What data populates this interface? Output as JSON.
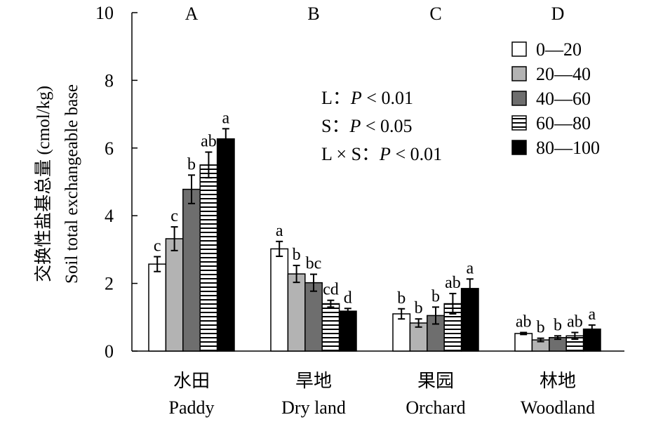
{
  "chart_data": {
    "type": "bar",
    "ylabel_cn": "交换性盐基总量 (cmol/kg)",
    "ylabel_en": "Soil total exchangeable base",
    "ylim": [
      0,
      10
    ],
    "yticks": [
      "0",
      "2",
      "4",
      "6",
      "8",
      "10"
    ],
    "panel_letters": [
      "A",
      "B",
      "C",
      "D"
    ],
    "categories": [
      {
        "cn": "水田",
        "en": "Paddy"
      },
      {
        "cn": "旱地",
        "en": "Dry land"
      },
      {
        "cn": "果园",
        "en": "Orchard"
      },
      {
        "cn": "林地",
        "en": "Woodland"
      }
    ],
    "series": [
      {
        "name": "0—20",
        "fill": "white",
        "values": [
          2.57,
          3.02,
          1.1,
          0.52
        ],
        "errors": [
          0.22,
          0.22,
          0.15,
          0.03
        ],
        "letters": [
          "c",
          "a",
          "b",
          "ab"
        ]
      },
      {
        "name": "20—40",
        "fill": "lightgray",
        "values": [
          3.32,
          2.28,
          0.83,
          0.33
        ],
        "errors": [
          0.35,
          0.25,
          0.12,
          0.05
        ],
        "letters": [
          "c",
          "b",
          "b",
          "b"
        ]
      },
      {
        "name": "40—60",
        "fill": "darkgray",
        "values": [
          4.78,
          2.02,
          1.05,
          0.4
        ],
        "errors": [
          0.42,
          0.25,
          0.25,
          0.05
        ],
        "letters": [
          "b",
          "bc",
          "b",
          "b"
        ]
      },
      {
        "name": "60—80",
        "fill": "stripes",
        "values": [
          5.5,
          1.4,
          1.4,
          0.45
        ],
        "errors": [
          0.38,
          0.1,
          0.3,
          0.1
        ],
        "letters": [
          "ab",
          "cd",
          "ab",
          "ab"
        ]
      },
      {
        "name": "80—100",
        "fill": "black",
        "values": [
          6.27,
          1.18,
          1.85,
          0.65
        ],
        "errors": [
          0.3,
          0.08,
          0.28,
          0.12
        ],
        "letters": [
          "a",
          "d",
          "a",
          "a"
        ]
      }
    ],
    "stats": {
      "lines": [
        {
          "prefix": "L：",
          "p": "P",
          "rest": " < 0.01"
        },
        {
          "prefix": "S：",
          "p": "P",
          "rest": " < 0.05"
        },
        {
          "prefix": "L × S：",
          "p": "P",
          "rest": " < 0.01"
        }
      ]
    },
    "colors": {
      "white": "#ffffff",
      "lightgray": "#b3b3b3",
      "darkgray": "#6e6e6e",
      "black": "#000000",
      "stroke": "#000000"
    }
  }
}
